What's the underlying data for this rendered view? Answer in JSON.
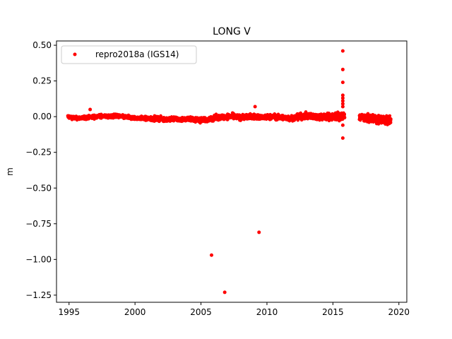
{
  "chart_data": {
    "type": "scatter",
    "title": "LONG V",
    "xlabel": "",
    "ylabel": "m",
    "xlim": [
      1994.05,
      2020.6
    ],
    "ylim": [
      -1.3,
      0.53
    ],
    "xticks": [
      1995,
      2000,
      2005,
      2010,
      2015,
      2020
    ],
    "xtick_labels": [
      "1995",
      "2000",
      "2005",
      "2010",
      "2015",
      "2020"
    ],
    "yticks": [
      0.5,
      0.25,
      0.0,
      -0.25,
      -0.5,
      -0.75,
      -1.0,
      -1.25
    ],
    "ytick_labels": [
      "0.50",
      "0.25",
      "0.00",
      "−0.25",
      "−0.50",
      "−0.75",
      "−1.00",
      "−1.25"
    ],
    "grid": false,
    "legend_position": "top-left",
    "marker_color": "#ff0000",
    "series": [
      {
        "name": "repro2018a (IGS14)",
        "segments": [
          {
            "x": [
              1994.9,
              1995.5,
              1996.0,
              1996.5,
              1997.0,
              1997.5,
              1998.0,
              1998.5,
              1999.0,
              1999.5,
              2000.0,
              2000.5,
              2001.0,
              2001.5,
              2002.0,
              2002.5,
              2003.0,
              2003.5,
              2004.0,
              2004.5,
              2005.0,
              2005.5,
              2006.0,
              2006.5,
              2007.0,
              2007.5,
              2008.0,
              2008.5,
              2009.0,
              2009.5,
              2010.0,
              2010.5,
              2011.0,
              2011.5,
              2012.0,
              2012.5,
              2013.0,
              2013.5,
              2014.0,
              2014.5,
              2015.0,
              2015.5,
              2015.9
            ],
            "y_center": [
              0.0,
              -0.01,
              -0.01,
              -0.005,
              0.0,
              0.005,
              0.0,
              0.005,
              0.0,
              -0.005,
              -0.01,
              -0.01,
              -0.015,
              -0.015,
              -0.015,
              -0.02,
              -0.015,
              -0.02,
              -0.015,
              -0.02,
              -0.025,
              -0.02,
              -0.01,
              -0.005,
              0.0,
              0.0,
              -0.005,
              0.0,
              0.0,
              -0.005,
              -0.005,
              0.0,
              -0.005,
              -0.01,
              -0.01,
              0.0,
              0.005,
              0.0,
              0.0,
              0.0,
              0.0,
              0.005,
              0.0
            ],
            "y_spread": [
              0.02,
              0.02,
              0.02,
              0.02,
              0.02,
              0.02,
              0.02,
              0.02,
              0.02,
              0.02,
              0.02,
              0.02,
              0.025,
              0.025,
              0.025,
              0.025,
              0.025,
              0.025,
              0.025,
              0.025,
              0.025,
              0.025,
              0.03,
              0.03,
              0.03,
              0.03,
              0.03,
              0.03,
              0.03,
              0.03,
              0.03,
              0.03,
              0.03,
              0.03,
              0.03,
              0.035,
              0.035,
              0.035,
              0.035,
              0.04,
              0.045,
              0.045,
              0.04
            ]
          },
          {
            "x": [
              2017.0,
              2017.5,
              2018.0,
              2018.5,
              2019.0,
              2019.4
            ],
            "y_center": [
              0.0,
              -0.01,
              -0.015,
              -0.02,
              -0.025,
              -0.025
            ],
            "y_spread": [
              0.035,
              0.04,
              0.045,
              0.05,
              0.05,
              0.05
            ]
          }
        ],
        "outliers": [
          {
            "x": 1996.6,
            "y": 0.05
          },
          {
            "x": 2009.1,
            "y": 0.07
          },
          {
            "x": 2005.8,
            "y": -0.97
          },
          {
            "x": 2006.8,
            "y": -1.23
          },
          {
            "x": 2009.4,
            "y": -0.81
          },
          {
            "x": 2015.75,
            "y": 0.46
          },
          {
            "x": 2015.75,
            "y": 0.33
          },
          {
            "x": 2015.75,
            "y": 0.24
          },
          {
            "x": 2015.75,
            "y": 0.15
          },
          {
            "x": 2015.75,
            "y": 0.13
          },
          {
            "x": 2015.75,
            "y": 0.11
          },
          {
            "x": 2015.75,
            "y": 0.09
          },
          {
            "x": 2015.75,
            "y": 0.07
          },
          {
            "x": 2015.75,
            "y": -0.15
          },
          {
            "x": 2015.75,
            "y": -0.06
          }
        ]
      }
    ]
  }
}
